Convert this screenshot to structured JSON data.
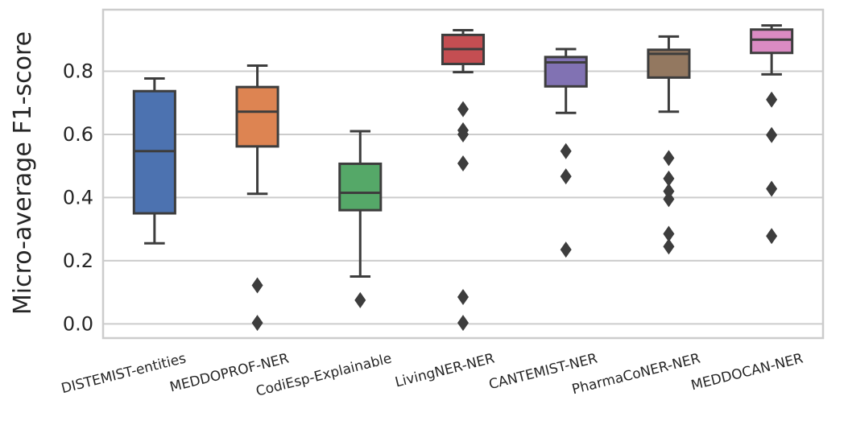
{
  "chart_data": {
    "type": "box",
    "title": "",
    "xlabel": "",
    "ylabel": "Micro-average F1-score",
    "ylim": [
      -0.045,
      0.995
    ],
    "yticks": [
      "0.0",
      "0.2",
      "0.4",
      "0.6",
      "0.8"
    ],
    "grid": "horizontal",
    "categories": [
      "DISTEMIST-entities",
      "MEDDOPROF-NER",
      "CodiEsp-Explainable",
      "LivingNER-NER",
      "CANTEMIST-NER",
      "PharmaCoNER-NER",
      "MEDDOCAN-NER"
    ],
    "boxes": [
      {
        "name": "DISTEMIST-entities",
        "color": "#4c72b0",
        "whisker_low": 0.255,
        "q1": 0.35,
        "median": 0.547,
        "q3": 0.737,
        "whisker_high": 0.777,
        "outliers": []
      },
      {
        "name": "MEDDOPROF-NER",
        "color": "#dd8452",
        "whisker_low": 0.412,
        "q1": 0.562,
        "median": 0.672,
        "q3": 0.75,
        "whisker_high": 0.818,
        "outliers": [
          0.122,
          0.003
        ]
      },
      {
        "name": "CodiEsp-Explainable",
        "color": "#55a868",
        "whisker_low": 0.15,
        "q1": 0.36,
        "median": 0.415,
        "q3": 0.507,
        "whisker_high": 0.61,
        "outliers": [
          0.075
        ]
      },
      {
        "name": "LivingNER-NER",
        "color": "#c44e52",
        "whisker_low": 0.797,
        "q1": 0.823,
        "median": 0.87,
        "q3": 0.915,
        "whisker_high": 0.93,
        "outliers": [
          0.68,
          0.613,
          0.6,
          0.508,
          0.085,
          0.003
        ]
      },
      {
        "name": "CANTEMIST-NER",
        "color": "#8172b3",
        "whisker_low": 0.668,
        "q1": 0.752,
        "median": 0.828,
        "q3": 0.845,
        "whisker_high": 0.87,
        "outliers": [
          0.547,
          0.467,
          0.235
        ]
      },
      {
        "name": "PharmaCoNER-NER",
        "color": "#937860",
        "whisker_low": 0.672,
        "q1": 0.78,
        "median": 0.855,
        "q3": 0.868,
        "whisker_high": 0.91,
        "outliers": [
          0.525,
          0.46,
          0.42,
          0.395,
          0.285,
          0.245
        ]
      },
      {
        "name": "MEDDOCAN-NER",
        "color": "#da8bc3",
        "whisker_low": 0.79,
        "q1": 0.858,
        "median": 0.9,
        "q3": 0.932,
        "whisker_high": 0.945,
        "outliers": [
          0.71,
          0.598,
          0.428,
          0.278
        ]
      }
    ],
    "colors": {
      "grid": "#cccccc",
      "frame": "#cccccc",
      "box_line": "#3d3d3d",
      "text": "#262626"
    }
  }
}
